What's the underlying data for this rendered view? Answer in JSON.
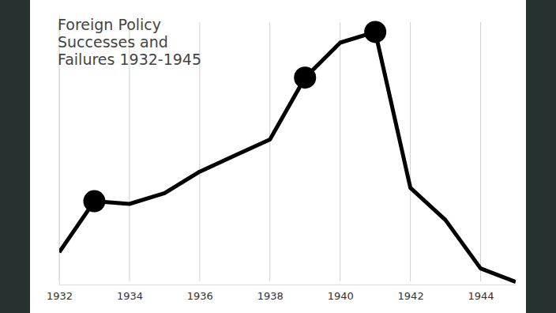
{
  "chart_data": {
    "type": "line",
    "title": [
      "Foreign Policy",
      "Successes and",
      "Failures 1932-1945"
    ],
    "x": [
      1932,
      1933,
      1934,
      1935,
      1936,
      1937,
      1938,
      1939,
      1940,
      1941,
      1942,
      1943,
      1944,
      1945
    ],
    "values": [
      12,
      31,
      30,
      34,
      42,
      48,
      54,
      77,
      90,
      94,
      36,
      24,
      6,
      1
    ],
    "highlights": [
      1933,
      1939,
      1941
    ],
    "xlim": [
      1932,
      1945
    ],
    "xticks": [
      1932,
      1934,
      1936,
      1938,
      1940,
      1942,
      1944
    ],
    "ylim": [
      0,
      100
    ],
    "grid": true,
    "tick_labels": "x",
    "color": "#000000",
    "marker": "circle"
  }
}
